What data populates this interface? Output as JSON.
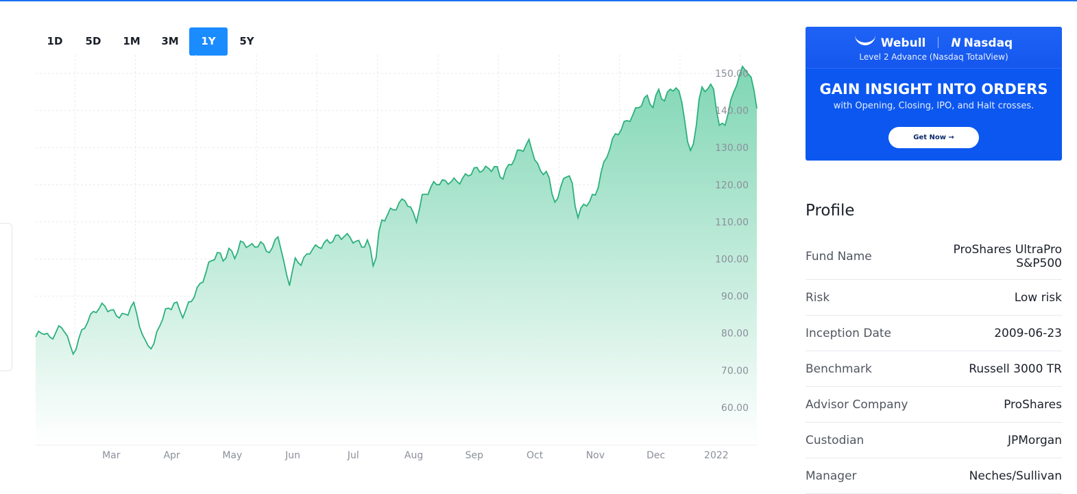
{
  "tabs": [
    {
      "label": "1D",
      "active": false
    },
    {
      "label": "5D",
      "active": false
    },
    {
      "label": "1M",
      "active": false
    },
    {
      "label": "3M",
      "active": false
    },
    {
      "label": "1Y",
      "active": true
    },
    {
      "label": "5Y",
      "active": false
    }
  ],
  "ad": {
    "brand_left": "Webull",
    "brand_right": "Nasdaq",
    "subtitle": "Level 2 Advance (Nasdaq TotalView)",
    "headline": "GAIN INSIGHT INTO ORDERS",
    "description": "with Opening, Closing, IPO, and Halt crosses.",
    "button_label": "Get Now →"
  },
  "profile": {
    "title": "Profile",
    "rows": [
      {
        "label": "Fund Name",
        "value": "ProShares UltraPro S&P500"
      },
      {
        "label": "Risk",
        "value": "Low risk"
      },
      {
        "label": "Inception Date",
        "value": "2009-06-23"
      },
      {
        "label": "Benchmark",
        "value": "Russell 3000 TR"
      },
      {
        "label": "Advisor Company",
        "value": "ProShares"
      },
      {
        "label": "Custodian",
        "value": "JPMorgan"
      },
      {
        "label": "Manager",
        "value": "Neches/Sullivan"
      }
    ]
  },
  "colors": {
    "accent": "#1a8cff",
    "line": "#2bb07a",
    "area_top": "#7fd6b4",
    "area_bottom": "#ffffff",
    "volume_up": "#8fdcbf",
    "volume_down": "#f2a3ad",
    "grid": "#e6e9ef"
  },
  "chart_data": {
    "type": "area",
    "ylim": [
      50,
      155
    ],
    "yticks": [
      60,
      70,
      80,
      90,
      100,
      110,
      120,
      130,
      140,
      150
    ],
    "ytick_labels": [
      "60.00",
      "70.00",
      "80.00",
      "90.00",
      "100.00",
      "110.00",
      "120.00",
      "130.00",
      "140.00",
      "150.00"
    ],
    "x_month_labels": [
      "Mar",
      "Apr",
      "May",
      "Jun",
      "Jul",
      "Aug",
      "Sep",
      "Oct",
      "Nov",
      "Dec",
      "2022"
    ],
    "x_month_positions": [
      1.5,
      2.5,
      3.5,
      4.5,
      5.5,
      6.5,
      7.5,
      8.5,
      9.5,
      10.5,
      11.5
    ],
    "x_range": [
      0,
      11.92
    ],
    "grid": true,
    "price_keypoints": [
      [
        0,
        79
      ],
      [
        0.15,
        80
      ],
      [
        0.25,
        78
      ],
      [
        0.35,
        82
      ],
      [
        0.5,
        81
      ],
      [
        0.6,
        73
      ],
      [
        0.75,
        80
      ],
      [
        0.85,
        84
      ],
      [
        1.0,
        86
      ],
      [
        1.15,
        87
      ],
      [
        1.3,
        86
      ],
      [
        1.4,
        85
      ],
      [
        1.5,
        84
      ],
      [
        1.6,
        88
      ],
      [
        1.7,
        84
      ],
      [
        1.8,
        78
      ],
      [
        1.95,
        76
      ],
      [
        2.05,
        82
      ],
      [
        2.15,
        86
      ],
      [
        2.3,
        89
      ],
      [
        2.45,
        84
      ],
      [
        2.55,
        88
      ],
      [
        2.7,
        93
      ],
      [
        2.85,
        98
      ],
      [
        3.0,
        101
      ],
      [
        3.1,
        100
      ],
      [
        3.2,
        103
      ],
      [
        3.3,
        101
      ],
      [
        3.4,
        104
      ],
      [
        3.55,
        103
      ],
      [
        3.7,
        105
      ],
      [
        3.8,
        103
      ],
      [
        3.9,
        101
      ],
      [
        4.0,
        107
      ],
      [
        4.1,
        99
      ],
      [
        4.2,
        94
      ],
      [
        4.3,
        100
      ],
      [
        4.4,
        98
      ],
      [
        4.55,
        103
      ],
      [
        4.7,
        104
      ],
      [
        4.85,
        104
      ],
      [
        5.0,
        106
      ],
      [
        5.1,
        107
      ],
      [
        5.2,
        106
      ],
      [
        5.3,
        104
      ],
      [
        5.4,
        103
      ],
      [
        5.5,
        105
      ],
      [
        5.6,
        98
      ],
      [
        5.7,
        110
      ],
      [
        5.8,
        111
      ],
      [
        5.95,
        114
      ],
      [
        6.1,
        117
      ],
      [
        6.2,
        113
      ],
      [
        6.3,
        110
      ],
      [
        6.4,
        117
      ],
      [
        6.5,
        119
      ],
      [
        6.6,
        121
      ],
      [
        6.75,
        120
      ],
      [
        6.9,
        121
      ],
      [
        7.05,
        122
      ],
      [
        7.2,
        123
      ],
      [
        7.35,
        124
      ],
      [
        7.5,
        125
      ],
      [
        7.6,
        125
      ],
      [
        7.7,
        121
      ],
      [
        7.8,
        124
      ],
      [
        7.95,
        129
      ],
      [
        8.05,
        130
      ],
      [
        8.15,
        131
      ],
      [
        8.25,
        127
      ],
      [
        8.35,
        123
      ],
      [
        8.45,
        125
      ],
      [
        8.55,
        116
      ],
      [
        8.65,
        116
      ],
      [
        8.75,
        123
      ],
      [
        8.85,
        122
      ],
      [
        8.95,
        112
      ],
      [
        9.05,
        114
      ],
      [
        9.15,
        115
      ],
      [
        9.25,
        117
      ],
      [
        9.35,
        124
      ],
      [
        9.5,
        131
      ],
      [
        9.65,
        134
      ],
      [
        9.8,
        138
      ],
      [
        9.95,
        141
      ],
      [
        10.1,
        143
      ],
      [
        10.2,
        141
      ],
      [
        10.3,
        146
      ],
      [
        10.4,
        143
      ],
      [
        10.5,
        146
      ],
      [
        10.6,
        145
      ],
      [
        10.7,
        142
      ],
      [
        10.8,
        128
      ],
      [
        10.9,
        134
      ],
      [
        11.0,
        146
      ],
      [
        11.1,
        145
      ],
      [
        11.2,
        147
      ],
      [
        11.3,
        136
      ],
      [
        11.4,
        137
      ],
      [
        11.5,
        142
      ],
      [
        11.6,
        148
      ],
      [
        11.7,
        152
      ],
      [
        11.8,
        151
      ],
      [
        11.92,
        141
      ]
    ],
    "volume_range": [
      0,
      100
    ]
  }
}
